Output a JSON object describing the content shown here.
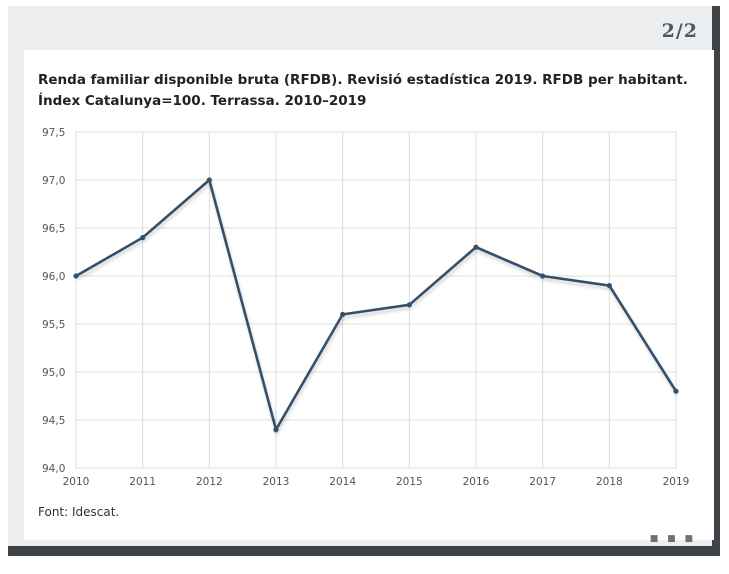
{
  "pagination": {
    "label": "2/2"
  },
  "chart_data": {
    "type": "line",
    "title": "Renda familiar disponible bruta (RFDB). Revisió estadística 2019. RFDB per habitant. Índex Catalunya=100. Terrassa. 2010–2019",
    "xlabel": "",
    "ylabel": "",
    "categories": [
      "2010",
      "2011",
      "2012",
      "2013",
      "2014",
      "2015",
      "2016",
      "2017",
      "2018",
      "2019"
    ],
    "values": [
      96.0,
      96.4,
      97.0,
      94.4,
      95.6,
      95.7,
      96.3,
      96.0,
      95.9,
      94.8
    ],
    "ylim": [
      94.0,
      97.5
    ],
    "y_ticks": [
      94.0,
      94.5,
      95.0,
      95.5,
      96.0,
      96.5,
      97.0,
      97.5
    ],
    "y_tick_labels": [
      "94,0",
      "94,5",
      "95,0",
      "95,5",
      "96,0",
      "96,5",
      "97,0",
      "97,5"
    ],
    "grid": true,
    "legend": "none",
    "line_color": "#34506b",
    "grid_color": "#dddddd"
  },
  "source": {
    "label": "Font: Idescat."
  }
}
